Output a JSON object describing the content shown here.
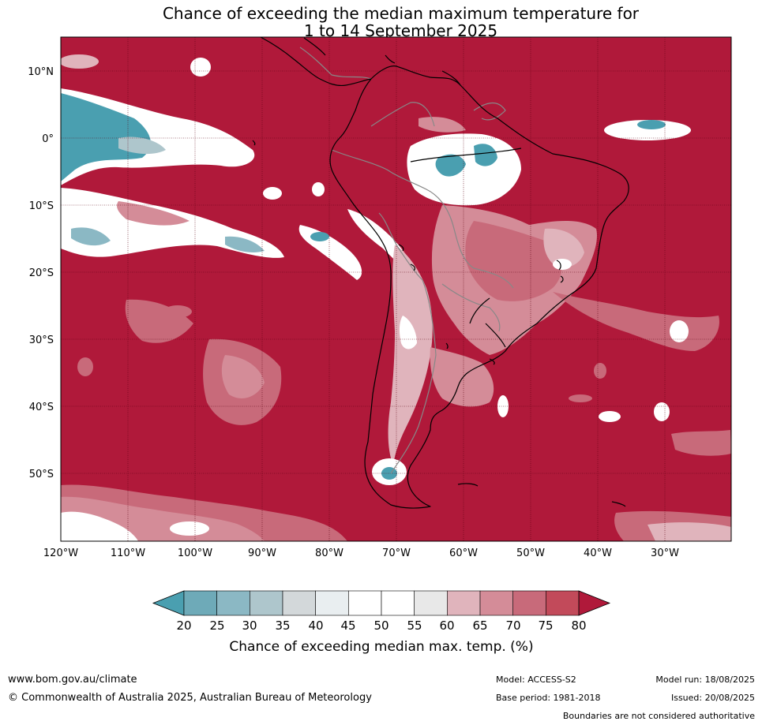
{
  "title": {
    "line1": "Chance of exceeding the median maximum temperature for",
    "line2": "1 to 14 September 2025"
  },
  "map": {
    "lat_ticks": [
      "10°N",
      "0°",
      "10°S",
      "20°S",
      "30°S",
      "40°S",
      "50°S"
    ],
    "lon_ticks": [
      "120°W",
      "110°W",
      "100°W",
      "90°W",
      "80°W",
      "70°W",
      "60°W",
      "50°W",
      "40°W",
      "30°W"
    ],
    "colors": {
      "very_likely_above": "#b0193a",
      "likely_above": "#c24a5a",
      "likely_below": "#4a9fb0",
      "neutral": "#ffffff"
    }
  },
  "colorbar": {
    "ticks": [
      "20",
      "25",
      "30",
      "35",
      "40",
      "45",
      "50",
      "55",
      "60",
      "65",
      "70",
      "75",
      "80"
    ],
    "colors": [
      "#4a9fb0",
      "#6eaab8",
      "#8bb8c4",
      "#aec6cc",
      "#d3d8da",
      "#e9eef0",
      "#ffffff",
      "#ffffff",
      "#e8e8e8",
      "#e0b4bc",
      "#d48c98",
      "#c86a7a",
      "#c24a5a",
      "#b0193a"
    ],
    "label": "Chance of exceeding median max. temp. (%)"
  },
  "footer": {
    "website": "www.bom.gov.au/climate",
    "copyright": "© Commonwealth of Australia 2025, Australian Bureau of Meteorology",
    "model": "Model: ACCESS-S2",
    "base_period": "Base period: 1981-2018",
    "model_run": "Model run: 18/08/2025",
    "issued": "Issued: 20/08/2025",
    "disclaimer": "Boundaries are not considered authoritative"
  }
}
